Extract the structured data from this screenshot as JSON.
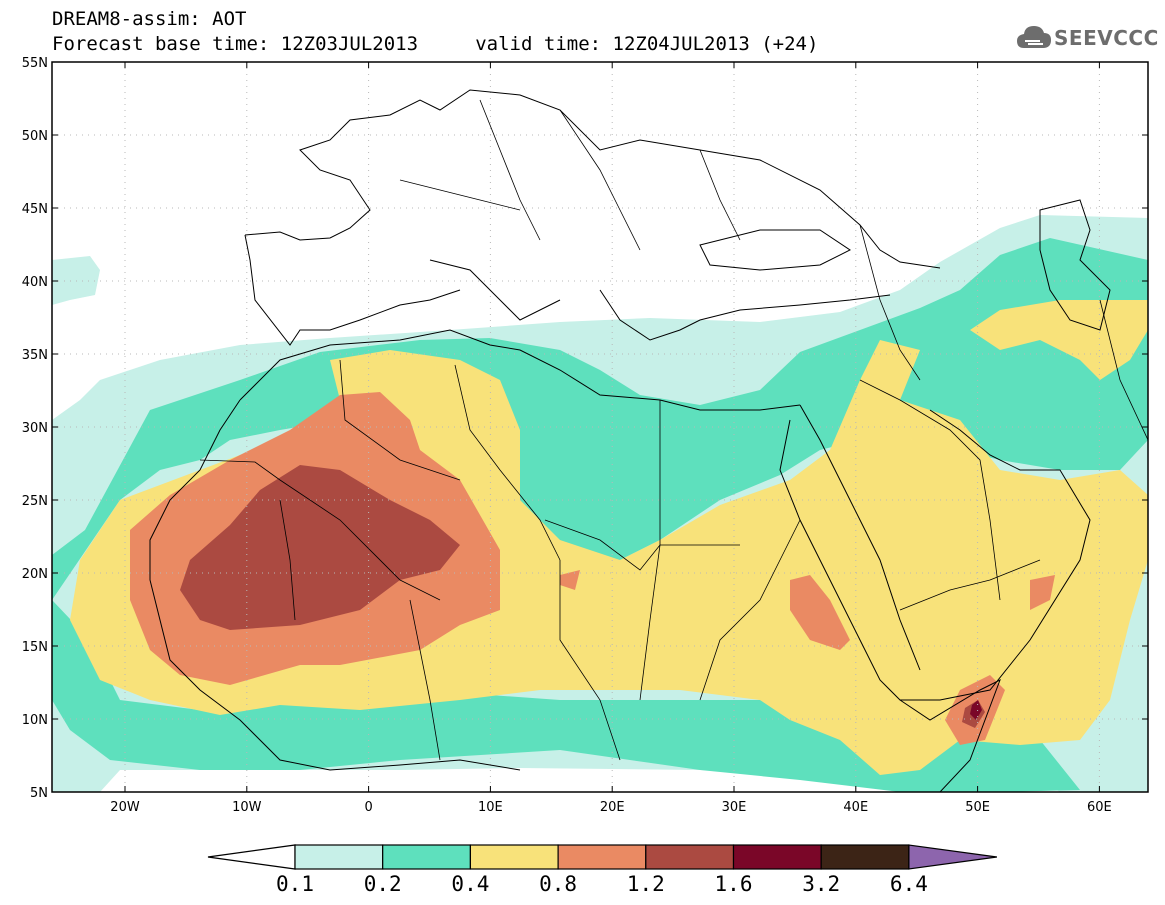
{
  "header": {
    "title_line1": "DREAM8-assim: AOT",
    "title_line2": "Forecast base time: 12Z03JUL2013     valid time: 12Z04JUL2013 (+24)"
  },
  "logo": {
    "text": "SEEVCCC",
    "icon": "cloud-logo-icon"
  },
  "map": {
    "lat_labels": [
      "55N",
      "50N",
      "45N",
      "40N",
      "35N",
      "30N",
      "25N",
      "20N",
      "15N",
      "10N",
      "5N"
    ],
    "lon_labels": [
      "20W",
      "10W",
      "0",
      "10E",
      "20E",
      "30E",
      "40E",
      "50E",
      "60E"
    ]
  },
  "colorbar": {
    "labels": [
      "0.1",
      "0.2",
      "0.4",
      "0.8",
      "1.2",
      "1.6",
      "3.2",
      "6.4"
    ],
    "colors": [
      "#ffffff",
      "#c7f0e8",
      "#5ee0bd",
      "#f8e27a",
      "#ea8a63",
      "#ab4a41",
      "#7a0628",
      "#3c2416",
      "#8d65ad"
    ]
  }
}
